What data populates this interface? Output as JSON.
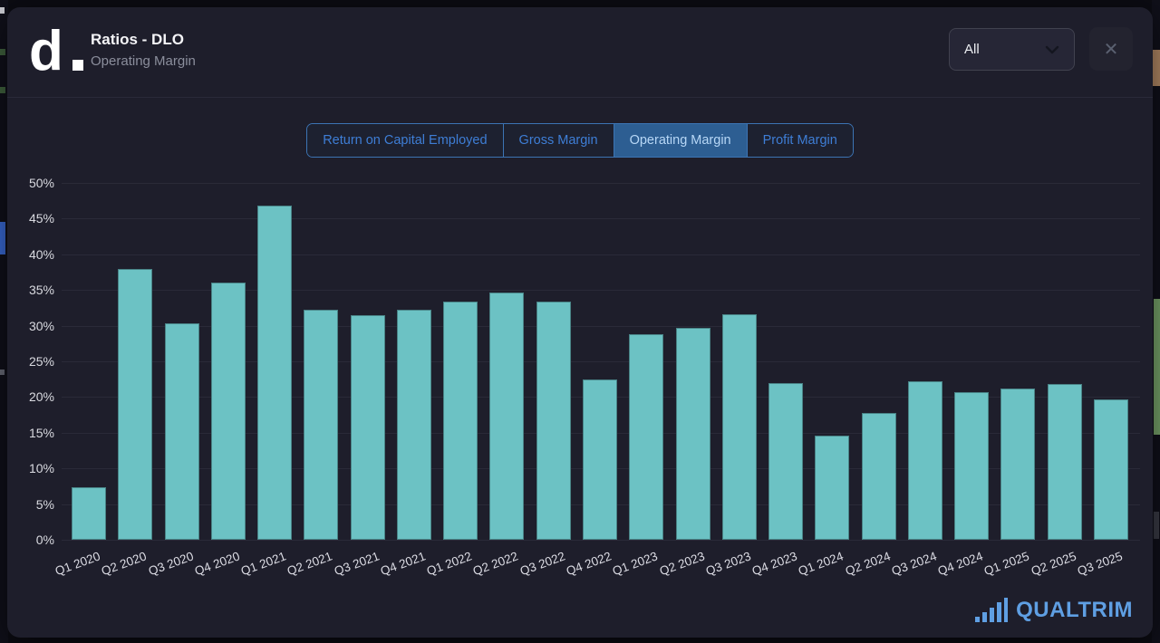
{
  "modal": {
    "logo_text": "d",
    "title": "Ratios - DLO",
    "subtitle": "Operating Margin",
    "range_select": {
      "value": "All",
      "icon": "chevron-down-icon"
    },
    "close_label": "✕"
  },
  "tabs": [
    {
      "label": "Return on Capital Employed",
      "selected": false
    },
    {
      "label": "Gross Margin",
      "selected": false
    },
    {
      "label": "Operating Margin",
      "selected": true
    },
    {
      "label": "Profit Margin",
      "selected": false
    }
  ],
  "chart_data": {
    "type": "bar",
    "title": "Operating Margin",
    "categories": [
      "Q1 2020",
      "Q2 2020",
      "Q3 2020",
      "Q4 2020",
      "Q1 2021",
      "Q2 2021",
      "Q3 2021",
      "Q4 2021",
      "Q1 2022",
      "Q2 2022",
      "Q3 2022",
      "Q4 2022",
      "Q1 2023",
      "Q2 2023",
      "Q3 2023",
      "Q4 2023",
      "Q1 2024",
      "Q2 2024",
      "Q3 2024",
      "Q4 2024",
      "Q1 2025",
      "Q2 2025",
      "Q3 2025"
    ],
    "values": [
      7.4,
      38.0,
      30.3,
      36.0,
      46.8,
      32.2,
      31.5,
      32.3,
      33.4,
      34.7,
      33.4,
      22.5,
      28.8,
      29.7,
      31.6,
      21.9,
      14.6,
      17.8,
      22.2,
      20.7,
      21.2,
      21.8,
      19.7
    ],
    "xlabel": "",
    "ylabel": "",
    "ylim": [
      0,
      50
    ],
    "y_tick_step": 5,
    "y_tick_suffix": "%",
    "grid": true,
    "legend": false,
    "bar_color": "#6cc2c4"
  },
  "branding": {
    "logo_text": "QUALTRIM",
    "logo_icon": "bar-chart-icon",
    "logo_color": "#5f9fe3"
  },
  "colors": {
    "modal_bg": "#1e1e2b",
    "accent_blue": "#3e7ed6",
    "selected_tab_bg": "#2d5e92",
    "bar_teal": "#6cc2c4",
    "backdrop_tan": "#b58a66",
    "backdrop_green": "#78a56b",
    "backdrop_blue": "#3a6bd8"
  }
}
